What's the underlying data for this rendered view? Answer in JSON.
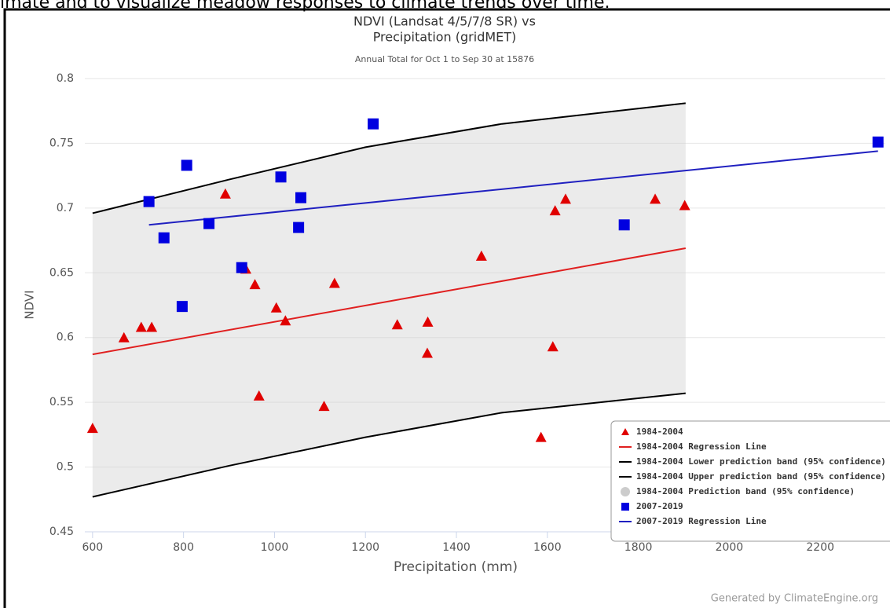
{
  "caption": "imate and to visualize meadow responses to climate trends over time.",
  "chart_data": {
    "type": "scatter",
    "title": [
      "NDVI (Landsat 4/5/7/8 SR) vs",
      "Precipitation (gridMET)"
    ],
    "subtitle": "Annual Total for Oct 1 to Sep 30 at 15876",
    "x_label": "Precipitation (mm)",
    "y_label": "NDVI",
    "xlim": [
      583,
      2343
    ],
    "ylim": [
      0.45,
      0.8
    ],
    "xticks": [
      600,
      800,
      1000,
      1200,
      1400,
      1600,
      1800,
      2000,
      2200
    ],
    "yticks": [
      0.45,
      0.5,
      0.55,
      0.6,
      0.65,
      0.7,
      0.75,
      0.8
    ],
    "grid": true,
    "legend": "lower right",
    "series": [
      {
        "name": "1984-2004",
        "type": "scatter",
        "marker": "triangle",
        "color": "#e00000",
        "x": [
          600,
          669,
          707,
          730,
          892,
          937,
          957,
          966,
          1004,
          1024,
          1109,
          1132,
          1270,
          1337,
          1336,
          1455,
          1586,
          1612,
          1617,
          1640,
          1837,
          1902
        ],
        "values": [
          0.53,
          0.6,
          0.608,
          0.608,
          0.711,
          0.653,
          0.641,
          0.555,
          0.623,
          0.613,
          0.547,
          0.642,
          0.61,
          0.612,
          0.588,
          0.663,
          0.523,
          0.593,
          0.698,
          0.707,
          0.707,
          0.702
        ]
      },
      {
        "name": "1984-2004 Regression Line",
        "type": "line",
        "color": "#e02020",
        "x": [
          600,
          1904
        ],
        "values": [
          0.587,
          0.669
        ]
      },
      {
        "name": "1984-2004 Lower prediction band (95% confidence)",
        "type": "line",
        "color": "#000000",
        "x": [
          600,
          900,
          1200,
          1500,
          1904
        ],
        "values": [
          0.477,
          0.501,
          0.523,
          0.542,
          0.557
        ]
      },
      {
        "name": "1984-2004 Upper prediction band (95% confidence)",
        "type": "line",
        "color": "#000000",
        "x": [
          600,
          900,
          1200,
          1500,
          1904
        ],
        "values": [
          0.696,
          0.722,
          0.747,
          0.765,
          0.781
        ]
      },
      {
        "name": "1984-2004 Prediction band (95% confidence)",
        "type": "area",
        "color": "#cccccc"
      },
      {
        "name": "2007-2019",
        "type": "scatter",
        "marker": "square",
        "color": "#0000e0",
        "x": [
          724,
          757,
          807,
          797,
          856,
          928,
          1014,
          1058,
          1053,
          1217,
          1769,
          2327
        ],
        "values": [
          0.705,
          0.677,
          0.733,
          0.624,
          0.688,
          0.654,
          0.724,
          0.708,
          0.685,
          0.765,
          0.687,
          0.751
        ]
      },
      {
        "name": "2007-2019 Regression Line",
        "type": "line",
        "color": "#2020c0",
        "x": [
          724,
          2327
        ],
        "values": [
          0.687,
          0.744
        ]
      }
    ],
    "credit": "Generated by ClimateEngine.org"
  }
}
